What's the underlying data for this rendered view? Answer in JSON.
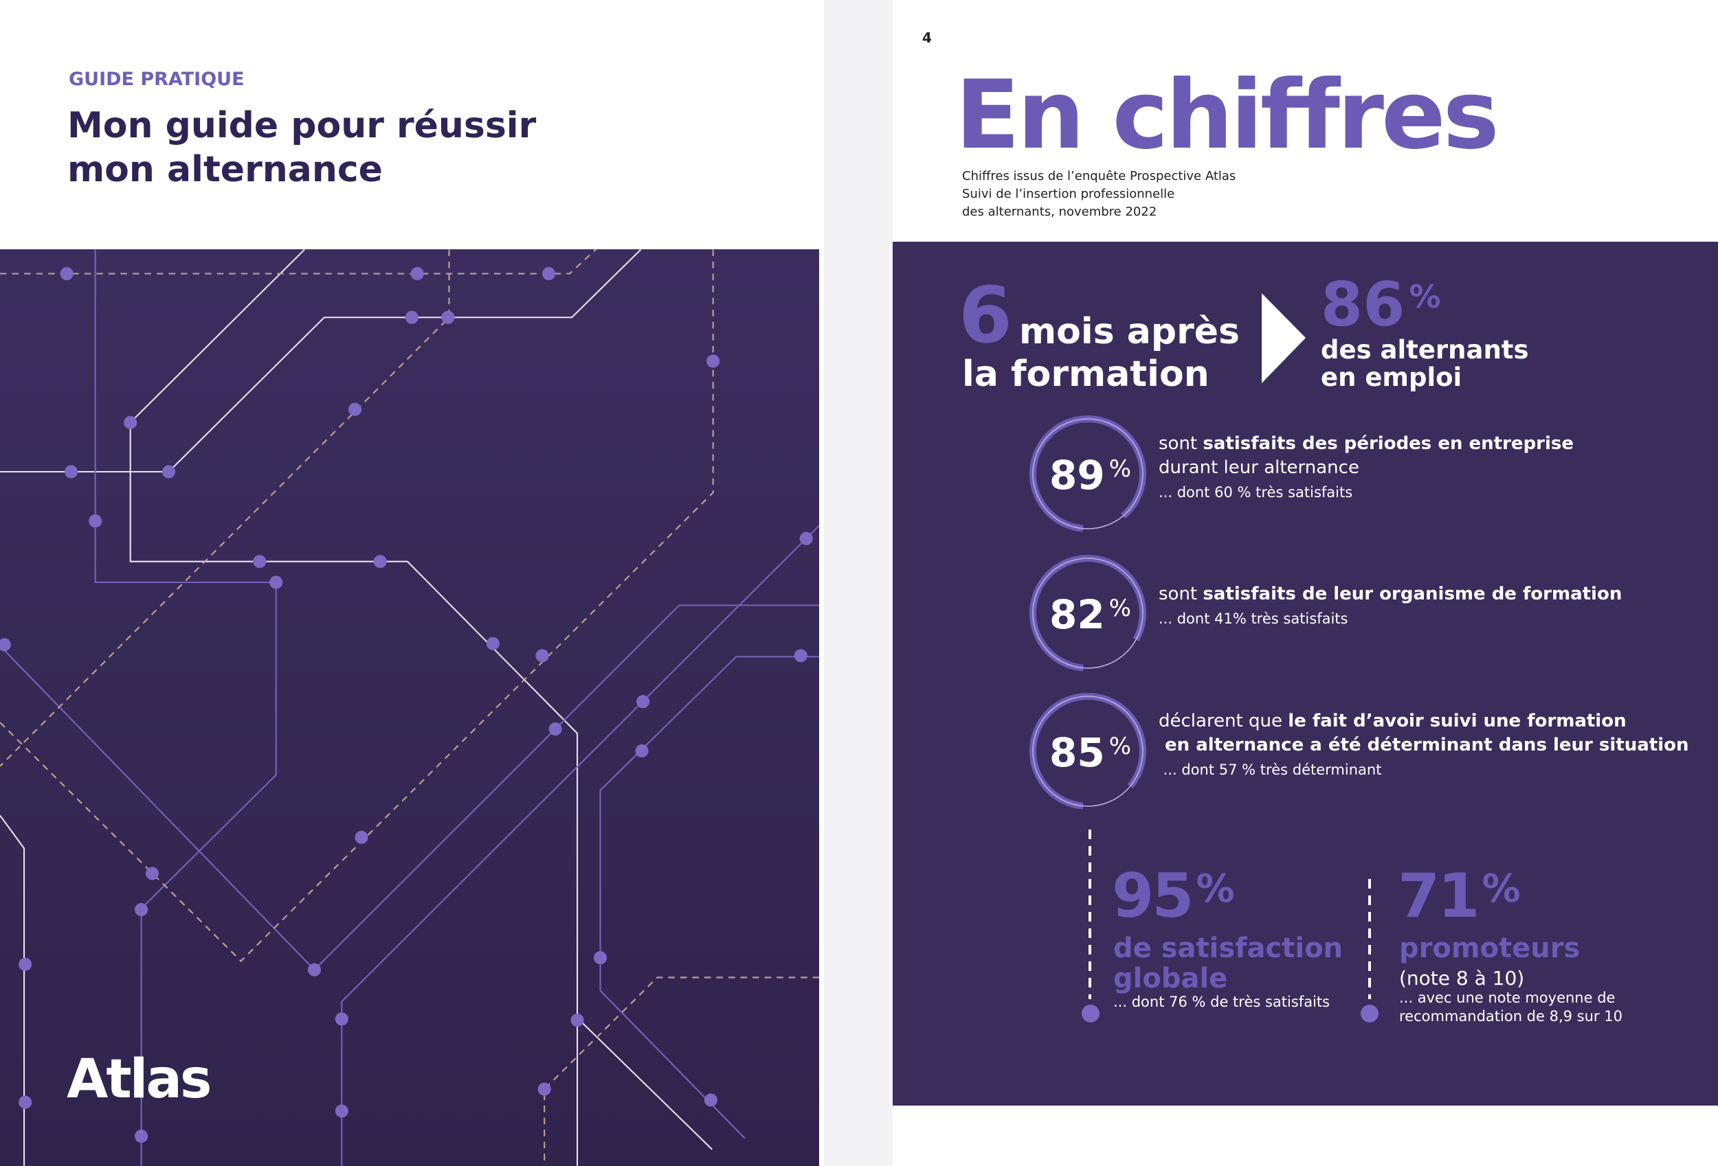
{
  "left_page": {
    "kicker": "GUIDE PRATIQUE",
    "title": [
      "Mon guide pour réussir",
      "mon alternance"
    ],
    "logo": "Atlas"
  },
  "right_page": {
    "page_number": "4",
    "heading": "En chiffres",
    "source": [
      "Chiffres issus de l’enquête Prospective Atlas",
      "Suivi de l’insertion professionnelle",
      "des alternants, novembre 2022"
    ],
    "headline": {
      "number": "6",
      "text": [
        "mois après",
        "la formation"
      ],
      "stat": "86",
      "unit": "%",
      "stat_text": [
        "des alternants",
        "en emploi"
      ]
    },
    "rings": [
      {
        "value": "89",
        "unit": "%",
        "lines": [
          [
            {
              "text": "sont "
            },
            {
              "text": "satisfaits des périodes en entreprise",
              "bold": true
            }
          ],
          [
            {
              "text": "durant leur alternance"
            }
          ]
        ],
        "note": "... dont 60 % très satisfaits"
      },
      {
        "value": "82",
        "unit": "%",
        "lines": [
          [
            {
              "text": "sont "
            },
            {
              "text": "satisfaits de leur organisme de formation",
              "bold": true
            }
          ]
        ],
        "note": "... dont 41% très satisfaits"
      },
      {
        "value": "85",
        "unit": "%",
        "lines": [
          [
            {
              "text": "déclarent que "
            },
            {
              "text": "le fait d’avoir suivi une formation",
              "bold": true
            }
          ],
          [
            {
              "text": " en alternance a été déterminant dans leur situation",
              "bold": true
            }
          ]
        ],
        "note": " ... dont 57 % très déterminant"
      }
    ],
    "bottom": [
      {
        "value": "95",
        "unit": "%",
        "label": [
          "de satisfaction",
          "globale"
        ],
        "details": [
          "... dont 76 % de très satisfaits"
        ]
      },
      {
        "value": "71",
        "unit": "%",
        "label": [
          "promoteurs"
        ],
        "sub": "(note 8 à 10)",
        "details": [
          "... avec une note moyenne de",
          "recommandation de 8,9 sur 10"
        ]
      }
    ]
  }
}
